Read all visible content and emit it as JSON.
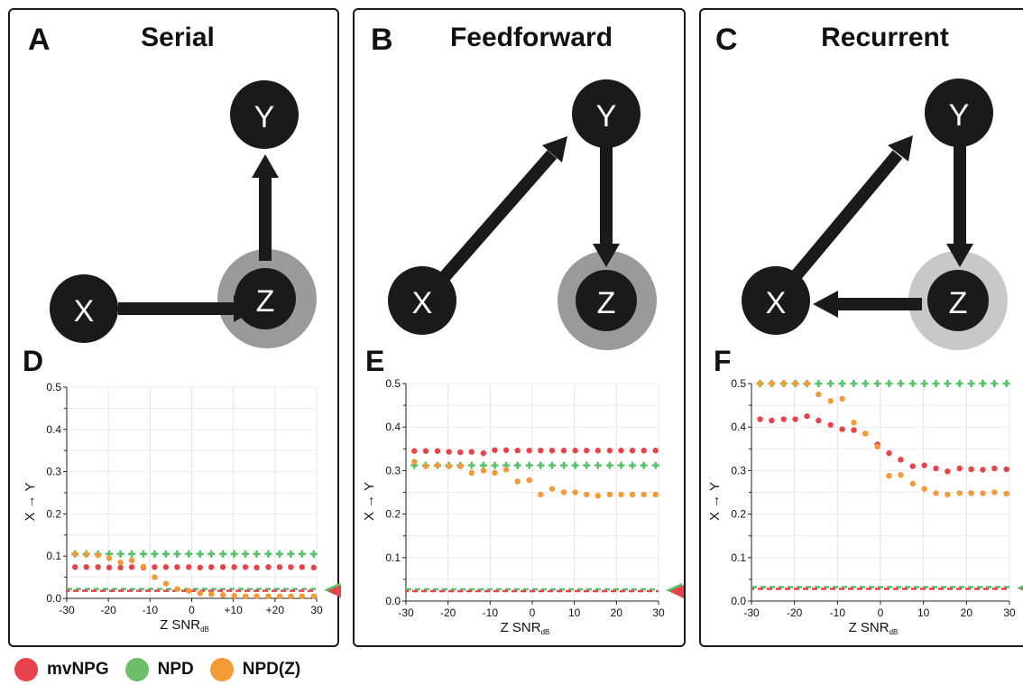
{
  "panels": [
    {
      "letter": "A",
      "title": "Serial"
    },
    {
      "letter": "B",
      "title": "Feedforward"
    },
    {
      "letter": "C",
      "title": "Recurrent"
    }
  ],
  "nodes": {
    "x": "X",
    "y": "Y",
    "z": "Z"
  },
  "chart_letters": [
    "D",
    "E",
    "F"
  ],
  "legend": [
    {
      "label": "mvNPG",
      "color": "#e8434b"
    },
    {
      "label": "NPD",
      "color": "#6bbf6a"
    },
    {
      "label": "NPD(Z)",
      "color": "#f59a36"
    }
  ],
  "colors": {
    "node": "#1a1a1a",
    "z_ring_serial": "#9a9a9a",
    "z_ring_feedforward": "#9a9a9a",
    "z_ring_recurrent": "#c8c8c8",
    "mvNPG": "#e8434b",
    "NPD": "#56c26a",
    "NPDZ": "#f59a36"
  },
  "chart_data": [
    {
      "type": "scatter",
      "xlabel": "Z SNR",
      "xlabel_sub": "dB",
      "ylabel": "X → Y",
      "xlim": [
        -30,
        30
      ],
      "ylim": [
        0,
        0.5
      ],
      "xticks": [
        "-30",
        "-20",
        "-10",
        "0",
        "+10",
        "+20",
        "30"
      ],
      "yticks": [
        "0.0",
        "0.1",
        "0.2",
        "0.3",
        "0.4",
        "0.5"
      ],
      "grid": true,
      "threshold": 0.02,
      "x": [
        -28,
        -25.3,
        -22.5,
        -19.8,
        -17.1,
        -14.4,
        -11.6,
        -8.9,
        -6.2,
        -3.5,
        -0.7,
        2,
        4.7,
        7.5,
        10.2,
        12.9,
        15.6,
        18.4,
        21.1,
        23.8,
        26.5,
        29.3
      ],
      "series": [
        {
          "name": "mvNPG",
          "values": [
            0.074,
            0.074,
            0.074,
            0.073,
            0.073,
            0.074,
            0.073,
            0.074,
            0.074,
            0.074,
            0.074,
            0.073,
            0.074,
            0.074,
            0.074,
            0.074,
            0.073,
            0.074,
            0.074,
            0.074,
            0.074,
            0.073
          ]
        },
        {
          "name": "NPD",
          "values": [
            0.105,
            0.105,
            0.105,
            0.105,
            0.105,
            0.105,
            0.105,
            0.105,
            0.105,
            0.105,
            0.105,
            0.105,
            0.105,
            0.105,
            0.105,
            0.105,
            0.105,
            0.105,
            0.105,
            0.105,
            0.105,
            0.105
          ]
        },
        {
          "name": "NPD(Z)",
          "values": [
            0.105,
            0.104,
            0.102,
            0.095,
            0.085,
            0.09,
            0.075,
            0.05,
            0.035,
            0.022,
            0.018,
            0.012,
            0.01,
            0.008,
            0.006,
            0.005,
            0.005,
            0.005,
            0.005,
            0.005,
            0.005,
            0.005
          ]
        }
      ]
    },
    {
      "type": "scatter",
      "xlabel": "Z SNR",
      "xlabel_sub": "dB",
      "ylabel": "X → Y",
      "xlim": [
        -30,
        30
      ],
      "ylim": [
        0,
        0.5
      ],
      "xticks": [
        "-30",
        "-20",
        "-10",
        "0",
        "10",
        "20",
        "30"
      ],
      "yticks": [
        "0.0",
        "0.1",
        "0.2",
        "0.3",
        "0.4",
        "0.5"
      ],
      "grid": true,
      "threshold": 0.025,
      "x": [
        -28,
        -25.3,
        -22.5,
        -19.8,
        -17.1,
        -14.4,
        -11.6,
        -8.9,
        -6.2,
        -3.5,
        -0.7,
        2,
        4.7,
        7.5,
        10.2,
        12.9,
        15.6,
        18.4,
        21.1,
        23.8,
        26.5,
        29.3
      ],
      "series": [
        {
          "name": "mvNPG",
          "values": [
            0.345,
            0.345,
            0.345,
            0.343,
            0.342,
            0.343,
            0.34,
            0.347,
            0.347,
            0.346,
            0.346,
            0.346,
            0.346,
            0.346,
            0.346,
            0.346,
            0.346,
            0.346,
            0.346,
            0.346,
            0.346,
            0.346
          ]
        },
        {
          "name": "NPD",
          "values": [
            0.312,
            0.312,
            0.312,
            0.312,
            0.312,
            0.312,
            0.312,
            0.312,
            0.312,
            0.312,
            0.312,
            0.312,
            0.312,
            0.312,
            0.312,
            0.312,
            0.312,
            0.312,
            0.312,
            0.312,
            0.312,
            0.312
          ]
        },
        {
          "name": "NPD(Z)",
          "values": [
            0.32,
            0.31,
            0.312,
            0.31,
            0.31,
            0.295,
            0.3,
            0.295,
            0.302,
            0.275,
            0.278,
            0.245,
            0.258,
            0.25,
            0.25,
            0.245,
            0.242,
            0.245,
            0.245,
            0.245,
            0.245,
            0.245
          ]
        }
      ]
    },
    {
      "type": "scatter",
      "xlabel": "Z SNR",
      "xlabel_sub": "dB",
      "ylabel": "X → Y",
      "xlim": [
        -30,
        30
      ],
      "ylim": [
        0,
        0.5
      ],
      "xticks": [
        "-30",
        "-20",
        "-10",
        "0",
        "10",
        "20",
        "30"
      ],
      "yticks": [
        "0.0",
        "0.1",
        "0.2",
        "0.3",
        "0.4",
        "0.5"
      ],
      "grid": true,
      "threshold": 0.03,
      "x": [
        -28,
        -25.3,
        -22.5,
        -19.8,
        -17.1,
        -14.4,
        -11.6,
        -8.9,
        -6.2,
        -3.5,
        -0.7,
        2,
        4.7,
        7.5,
        10.2,
        12.9,
        15.6,
        18.4,
        21.1,
        23.8,
        26.5,
        29.3
      ],
      "series": [
        {
          "name": "mvNPG",
          "values": [
            0.418,
            0.415,
            0.418,
            0.418,
            0.425,
            0.415,
            0.405,
            0.395,
            0.393,
            0.385,
            0.36,
            0.34,
            0.325,
            0.31,
            0.312,
            0.305,
            0.298,
            0.305,
            0.303,
            0.302,
            0.305,
            0.303
          ]
        },
        {
          "name": "NPD",
          "values": [
            0.5,
            0.5,
            0.5,
            0.5,
            0.5,
            0.5,
            0.5,
            0.5,
            0.5,
            0.5,
            0.5,
            0.5,
            0.5,
            0.5,
            0.5,
            0.5,
            0.5,
            0.5,
            0.5,
            0.5,
            0.5,
            0.5
          ]
        },
        {
          "name": "NPD(Z)",
          "values": [
            0.5,
            0.5,
            0.5,
            0.5,
            0.5,
            0.475,
            0.46,
            0.465,
            0.41,
            0.385,
            0.355,
            0.288,
            0.29,
            0.27,
            0.258,
            0.248,
            0.245,
            0.248,
            0.248,
            0.248,
            0.25,
            0.247
          ]
        }
      ]
    }
  ]
}
